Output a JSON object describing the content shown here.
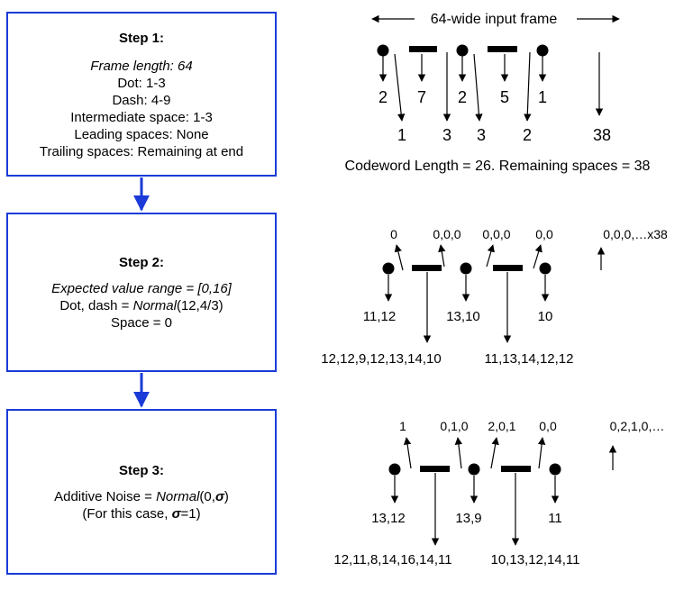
{
  "step1": {
    "title": "Step 1:",
    "frame_length": "Frame length: 64",
    "dot": "Dot: 1-3",
    "dash": "Dash: 4-9",
    "intermediate": "Intermediate space: 1-3",
    "leading": "Leading spaces: None",
    "trailing": "Trailing spaces: Remaining at end"
  },
  "step2": {
    "title": "Step 2:",
    "range": "Expected value range = [0,16]",
    "dotdash_prefix": "Dot, dash = ",
    "dotdash_dist": "Normal",
    "dotdash_params": "(12,4/3)",
    "space": "Space = 0"
  },
  "step3": {
    "title": "Step 3:",
    "noise_prefix": "Additive Noise = ",
    "noise_dist": "Normal",
    "noise_params_open": "(0,",
    "sigma": "σ",
    "noise_params_close": ")",
    "case_prefix": "(For this case, ",
    "case_suffix": "=1)"
  },
  "frame_header": "64-wide input frame",
  "codeword_summary": "Codeword Length = 26. Remaining spaces = 38",
  "row1": {
    "top_labels": [
      "2",
      "7",
      "2",
      "5",
      "1"
    ],
    "bottom_labels": [
      "1",
      "3",
      "3",
      "2",
      "38"
    ]
  },
  "row2": {
    "top_labels": [
      "0",
      "0,0,0",
      "0,0,0",
      "0,0",
      "0,0,0,…x38"
    ],
    "mid_labels": [
      "11,12",
      "13,10",
      "10"
    ],
    "bottom_labels": [
      "12,12,9,12,13,14,10",
      "11,13,14,12,12"
    ]
  },
  "row3": {
    "top_labels": [
      "1",
      "0,1,0",
      "2,0,1",
      "0,0",
      "0,2,1,0,…"
    ],
    "mid_labels": [
      "13,12",
      "13,9",
      "11"
    ],
    "bottom_labels": [
      "12,11,8,14,16,14,11",
      "10,13,12,14,11"
    ]
  }
}
